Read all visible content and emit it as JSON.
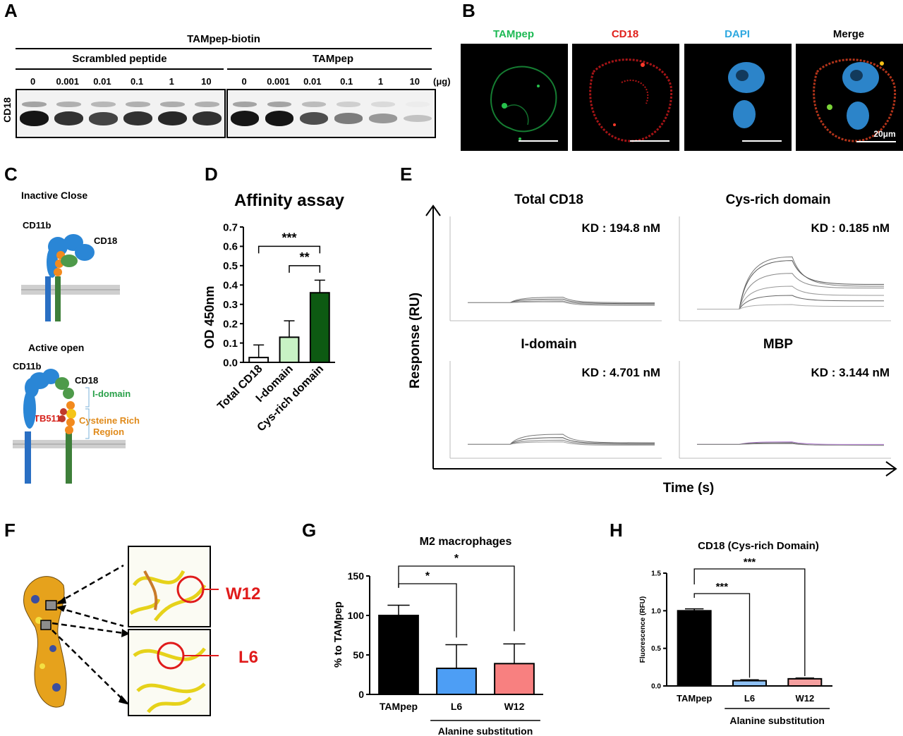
{
  "panels": {
    "A": "A",
    "B": "B",
    "C": "C",
    "D": "D",
    "E": "E",
    "F": "F",
    "G": "G",
    "H": "H"
  },
  "blot": {
    "header": "TAMpep-biotin",
    "group_left": "Scrambled peptide",
    "group_right": "TAMpep",
    "row_label": "CD18",
    "unit": "(μg)",
    "lanes_left": [
      "0",
      "0.001",
      "0.01",
      "0.1",
      "1",
      "10"
    ],
    "lanes_right": [
      "0",
      "0.001",
      "0.01",
      "0.1",
      "1",
      "10"
    ],
    "intensity_left": [
      1.0,
      0.85,
      0.75,
      0.85,
      0.9,
      0.85
    ],
    "intensity_right": [
      1.0,
      1.0,
      0.7,
      0.45,
      0.3,
      0.08
    ]
  },
  "microscopy": {
    "channels": [
      {
        "label": "TAMpep",
        "color": "#1db954"
      },
      {
        "label": "CD18",
        "color": "#e0201b"
      },
      {
        "label": "DAPI",
        "color": "#2ea8e0"
      },
      {
        "label": "Merge",
        "color": "#000000"
      }
    ],
    "scale": "20μm"
  },
  "schematic": {
    "inactive": "Inactive Close",
    "active": "Active open",
    "cd11b": "CD11b",
    "cd18": "CD18",
    "idomain": "I-domain",
    "cys_region_1": "Cysteine Rich",
    "cys_region_2": "Region",
    "tb511": "TB511"
  },
  "chart_data": [
    {
      "type": "bar",
      "panel": "D",
      "title": "Affinity assay",
      "ylabel": "OD 450nm",
      "categories": [
        "Total CD18",
        "I-domain",
        "Cys-rich domain"
      ],
      "values": [
        0.025,
        0.13,
        0.36
      ],
      "errors": [
        0.065,
        0.085,
        0.065
      ],
      "colors": [
        "#ffffff",
        "#c8f2c4",
        "#0d5a12"
      ],
      "ylim": [
        0,
        0.7
      ],
      "yticks": [
        "0.0",
        "0.1",
        "0.2",
        "0.3",
        "0.4",
        "0.5",
        "0.6",
        "0.7"
      ],
      "significance": [
        "***",
        "**"
      ]
    },
    {
      "type": "line",
      "panel": "E",
      "xlabel": "Time (s)",
      "ylabel": "Response (RU)",
      "subplots": [
        {
          "title": "Total CD18",
          "kd": "KD : 194.8 nM"
        },
        {
          "title": "Cys-rich domain",
          "kd": "KD : 0.185 nM"
        },
        {
          "title": "I-domain",
          "kd": "KD : 4.701 nM"
        },
        {
          "title": "MBP",
          "kd": "KD : 3.144 nM"
        }
      ]
    },
    {
      "type": "bar",
      "panel": "G",
      "title": "M2 macrophages",
      "ylabel": "% to TAMpep",
      "categories": [
        "TAMpep",
        "L6",
        "W12"
      ],
      "values": [
        100,
        33,
        39
      ],
      "errors": [
        13,
        30,
        25
      ],
      "colors": [
        "#000000",
        "#4d9ef5",
        "#f88080"
      ],
      "ylim": [
        0,
        150
      ],
      "yticks": [
        "0",
        "50",
        "100",
        "150"
      ],
      "significance": [
        "*",
        "*"
      ],
      "group_label": "Alanine substitution"
    },
    {
      "type": "bar",
      "panel": "H",
      "title": "CD18 (Cys-rich Domain)",
      "ylabel": "Fluorescence (RFU)",
      "categories": [
        "TAMpep",
        "L6",
        "W12"
      ],
      "values": [
        1.0,
        0.07,
        0.095
      ],
      "errors": [
        0.025,
        0.012,
        0.01
      ],
      "colors": [
        "#000000",
        "#8fc2f5",
        "#f5a0a0"
      ],
      "ylim": [
        0,
        1.5
      ],
      "yticks": [
        "0.0",
        "0.5",
        "1.0",
        "1.5"
      ],
      "significance": [
        "***",
        "***"
      ],
      "group_label": "Alanine substitution"
    }
  ],
  "structure": {
    "w12": "W12",
    "l6": "L6"
  }
}
